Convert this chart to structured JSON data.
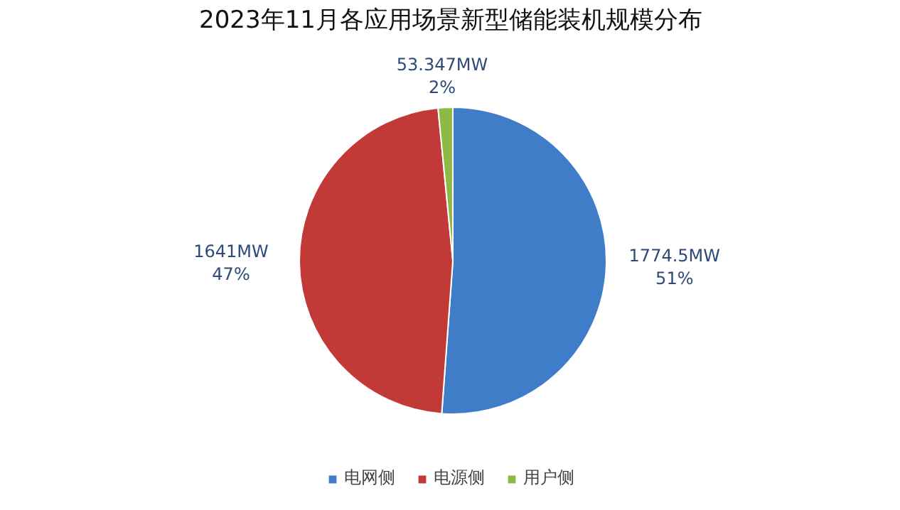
{
  "chart_data": {
    "type": "pie",
    "title": "2023年11月各应用场景新型储能装机规模分布",
    "categories": [
      "电网侧",
      "电源侧",
      "用户侧"
    ],
    "values": [
      1774.5,
      1641,
      53.347
    ],
    "value_labels": [
      "1774.5MW\n51%",
      "1641MW\n47%",
      "53.347MW\n2%"
    ],
    "colors": [
      "#3f7dc8",
      "#c23a38",
      "#8dba45"
    ],
    "legend": "bottom"
  }
}
